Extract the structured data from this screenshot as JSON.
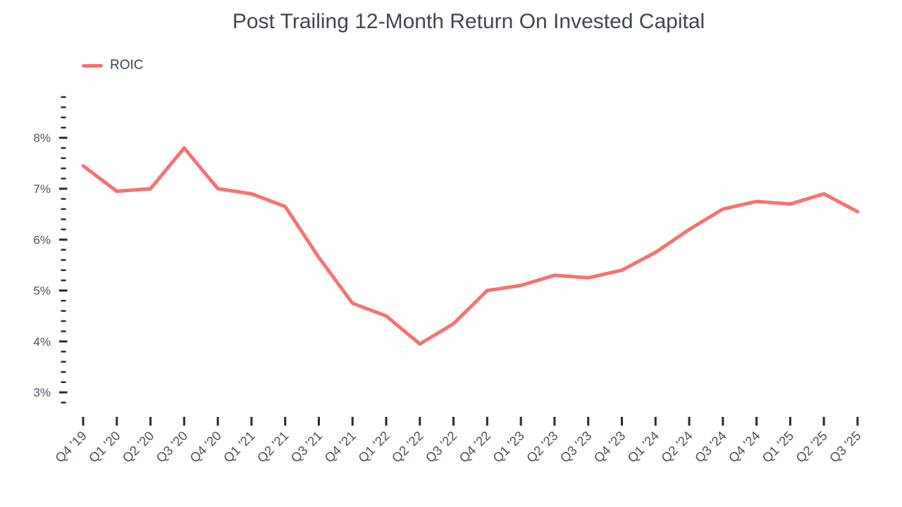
{
  "chart": {
    "title": "Post Trailing 12-Month Return On Invested Capital",
    "legend_label": "ROIC"
  },
  "chart_data": {
    "type": "line",
    "title": "Post Trailing 12-Month Return On Invested Capital",
    "categories": [
      "Q4 '19",
      "Q1 '20",
      "Q2 '20",
      "Q3 '20",
      "Q4 '20",
      "Q1 '21",
      "Q2 '21",
      "Q3 '21",
      "Q4 '21",
      "Q1 '22",
      "Q2 '22",
      "Q3 '22",
      "Q4 '22",
      "Q1 '23",
      "Q2 '23",
      "Q3 '23",
      "Q4 '23",
      "Q1 '24",
      "Q2 '24",
      "Q3 '24",
      "Q4 '24",
      "Q1 '25",
      "Q2 '25",
      "Q3 '25"
    ],
    "series": [
      {
        "name": "ROIC",
        "values": [
          7.45,
          6.95,
          7.0,
          7.8,
          7.0,
          6.9,
          6.65,
          5.65,
          4.75,
          4.5,
          3.95,
          4.35,
          5.0,
          5.1,
          5.3,
          5.25,
          5.4,
          5.75,
          6.2,
          6.6,
          6.75,
          6.7,
          6.9,
          6.55
        ]
      }
    ],
    "xlabel": "",
    "ylabel": "",
    "y_tick_labels": [
      "3%",
      "4%",
      "5%",
      "6%",
      "7%",
      "8%"
    ],
    "yaxis": {
      "min": 2.8,
      "max": 8.8,
      "major_step": 1,
      "minor_step": 0.2,
      "unit": "%"
    },
    "grid": false,
    "legend_position": "top-left",
    "colors": {
      "line": "#f87171",
      "tick": "#262b33",
      "axis_text": "#4a5260",
      "title_text": "#3d4655"
    }
  }
}
